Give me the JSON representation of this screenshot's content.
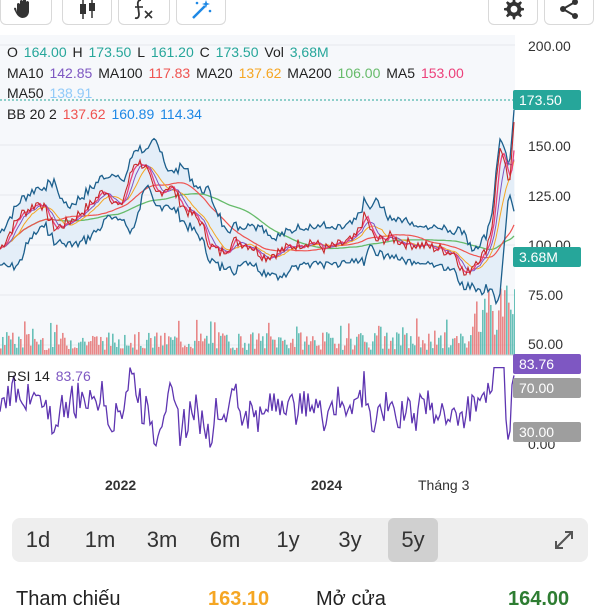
{
  "ohlc": {
    "o_label": "O",
    "o": "164.00",
    "h_label": "H",
    "h": "173.50",
    "l_label": "L",
    "l": "161.20",
    "c_label": "C",
    "c": "173.50",
    "vol_label": "Vol",
    "vol": "3,68M"
  },
  "ma": {
    "ma10_label": "MA10",
    "ma10": "142.85",
    "ma100_label": "MA100",
    "ma100": "117.83",
    "ma20_label": "MA20",
    "ma20": "137.62",
    "ma200_label": "MA200",
    "ma200": "106.00",
    "ma5_label": "MA5",
    "ma5": "153.00",
    "ma50_label": "MA50",
    "ma50": "138.91"
  },
  "bb": {
    "label": "BB 20 2",
    "mid": "137.62",
    "upper": "160.89",
    "lower": "114.34"
  },
  "rsi": {
    "label": "RSI 14",
    "value": "83.76"
  },
  "price_axis": [
    "200.00",
    "150.00",
    "125.00",
    "100.00",
    "75.00",
    "50.00"
  ],
  "rsi_axis": [
    "70.00",
    "30.00",
    "0.00"
  ],
  "tags": {
    "price": "173.50",
    "volume": "3.68M",
    "rsi": "83.76",
    "rsi70": "70.00",
    "rsi30": "30.00"
  },
  "x_labels": [
    "2022",
    "2024",
    "Tháng 3"
  ],
  "ranges": [
    "1d",
    "1m",
    "3m",
    "6m",
    "1y",
    "3y",
    "5y"
  ],
  "active_range": "5y",
  "bottom": {
    "ref_label": "Tham chiếu",
    "ref_value": "163.10",
    "open_label": "Mở cửa",
    "open_value": "164.00"
  },
  "colors": {
    "o": "#26a69a",
    "h": "#26a69a",
    "l": "#26a69a",
    "c": "#26a69a",
    "vol": "#26a69a",
    "ma10": "#7e57c2",
    "ma100": "#ef5350",
    "ma20": "#f5a623",
    "ma200": "#66bb6a",
    "ma5": "#ec407a",
    "ma50": "#90caf9",
    "bb": "#1e88e5",
    "rsi": "#5e35b1",
    "tag_green": "#26a69a",
    "tag_purple": "#7e57c2",
    "tag_gray": "#9e9e9e"
  },
  "icons": [
    "hand-icon",
    "candlestick-icon",
    "indicator-fx-icon",
    "magic-draw-icon",
    "settings-gear-icon",
    "share-icon",
    "expand-icon"
  ]
}
